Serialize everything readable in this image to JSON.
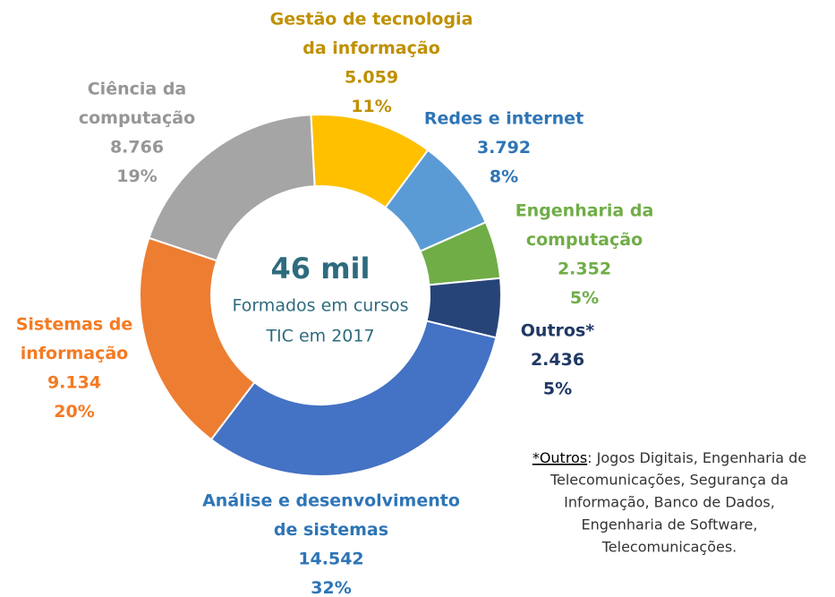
{
  "chart_data": {
    "type": "donut",
    "categories": [
      [
        "Gestão de tecnologia",
        "da informação"
      ],
      [
        "Redes e internet"
      ],
      [
        "Engenharia da",
        "computação"
      ],
      [
        "Outros*"
      ],
      [
        "Análise e desenvolvimento",
        "de sistemas"
      ],
      [
        "Sistemas de",
        "informação"
      ],
      [
        "Ciência da",
        "computação"
      ]
    ],
    "values": [
      5059,
      3792,
      2352,
      2436,
      14542,
      9134,
      8766
    ],
    "value_labels": [
      "5.059",
      "3.792",
      "2.352",
      "2.436",
      "14.542",
      "9.134",
      "8.766"
    ],
    "percent_labels": [
      "11%",
      "8%",
      "5%",
      "5%",
      "32%",
      "20%",
      "19%"
    ],
    "colors": [
      "#FFC000",
      "#5B9BD5",
      "#70AD47",
      "#264478",
      "#4472C4",
      "#ED7D31",
      "#A5A5A5"
    ],
    "label_colors": [
      "#BF9000",
      "#2E75B6",
      "#70AD47",
      "#1F3864",
      "#2E75B6",
      "#F57A22",
      "#969696"
    ],
    "center_label": [
      "46 mil",
      "Formados em cursos",
      "TIC em 2017"
    ],
    "note": {
      "term": "*Outros",
      "lines": [
        ": Jogos Digitais, Engenharia de",
        "Telecomunicações, Segurança da",
        "Informação, Banco de Dados,",
        "Engenharia de Software,",
        "Telecomunicações."
      ]
    }
  }
}
